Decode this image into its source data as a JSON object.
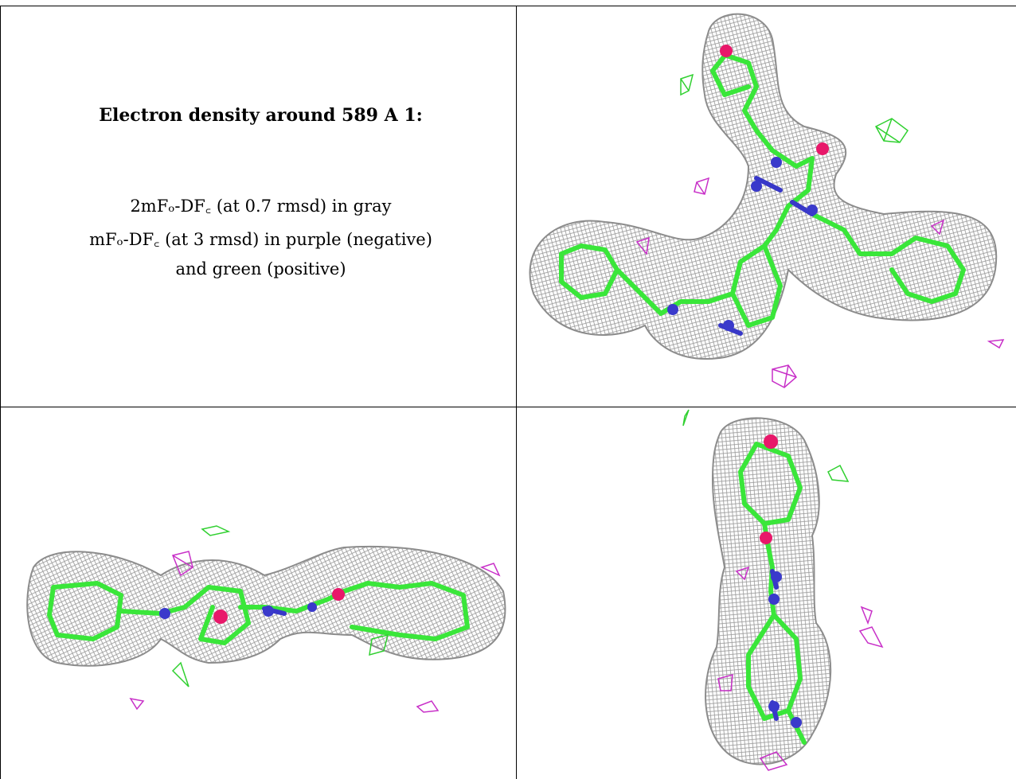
{
  "caption": {
    "title": "Electron density around 589 A 1:",
    "line1": "2mFₒ-DF꜀ (at 0.7 rmsd) in gray",
    "line2": "mFₒ-DF꜀ (at 3 rmsd) in purple (negative)",
    "line3": "and green (positive)"
  },
  "colors": {
    "mesh": "#8c8c8c",
    "carbon_bond": "#3ae63a",
    "nitrogen": "#3a3acb",
    "oxygen": "#e8186a",
    "negative_density": "#c830c8",
    "positive_density": "#30d030"
  },
  "panels": [
    {
      "name": "view-top-right"
    },
    {
      "name": "view-bottom-left"
    },
    {
      "name": "view-bottom-right"
    }
  ]
}
